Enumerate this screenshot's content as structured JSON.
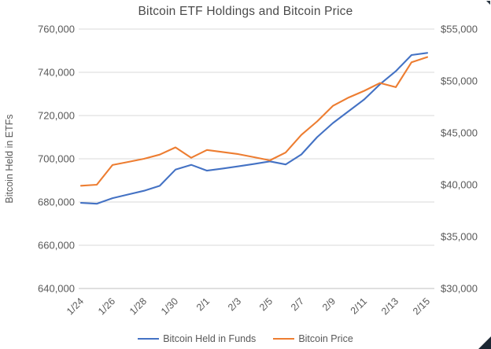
{
  "title": "Bitcoin ETF Holdings and Bitcoin Price",
  "colors": {
    "holdings_line": "#4472C4",
    "price_line": "#ED7D31",
    "gridline": "#D9D9D9",
    "axis_line": "#BFBFBF",
    "axis_text": "#595959",
    "title_text": "#4a4a4a"
  },
  "legend": {
    "holdings_label": "Bitcoin Held in Funds",
    "price_label": "Bitcoin Price"
  },
  "chart_data": {
    "type": "line",
    "title": "Bitcoin ETF Holdings and Bitcoin Price",
    "grid": "horizontal",
    "legend_position": "bottom",
    "x": [
      "1/24",
      "1/25",
      "1/26",
      "1/27",
      "1/28",
      "1/29",
      "1/30",
      "1/31",
      "2/1",
      "2/2",
      "2/3",
      "2/4",
      "2/5",
      "2/6",
      "2/7",
      "2/8",
      "2/9",
      "2/10",
      "2/11",
      "2/12",
      "2/13",
      "2/14",
      "2/15"
    ],
    "x_tick_labels": [
      "1/24",
      "1/26",
      "1/28",
      "1/30",
      "2/1",
      "2/3",
      "2/5",
      "2/7",
      "2/9",
      "2/11",
      "2/13",
      "2/15"
    ],
    "series": [
      {
        "name": "Bitcoin Held in Funds",
        "axis": "left",
        "color": "#4472C4",
        "values": [
          679600,
          679200,
          681800,
          683500,
          685200,
          687500,
          695000,
          697200,
          694500,
          695500,
          696500,
          697600,
          698800,
          697400,
          702000,
          710000,
          716500,
          722000,
          727500,
          734500,
          740500,
          748000,
          749000
        ]
      },
      {
        "name": "Bitcoin Price",
        "axis": "right",
        "color": "#ED7D31",
        "values": [
          39900,
          40000,
          41900,
          42200,
          42500,
          42900,
          43600,
          42600,
          43350,
          43150,
          42950,
          42650,
          42350,
          43100,
          44800,
          46100,
          47600,
          48400,
          49050,
          49800,
          49400,
          51800,
          52300
        ]
      }
    ],
    "left_axis": {
      "label": "Bitcoin Held in ETFs",
      "min": 640000,
      "max": 760000,
      "step": 20000,
      "tick_labels": [
        "640,000",
        "660,000",
        "680,000",
        "700,000",
        "720,000",
        "740,000",
        "760,000"
      ]
    },
    "right_axis": {
      "label": "",
      "min": 30000,
      "max": 55000,
      "step": 5000,
      "tick_labels": [
        "$30,000",
        "$35,000",
        "$40,000",
        "$45,000",
        "$50,000",
        "$55,000"
      ]
    }
  }
}
